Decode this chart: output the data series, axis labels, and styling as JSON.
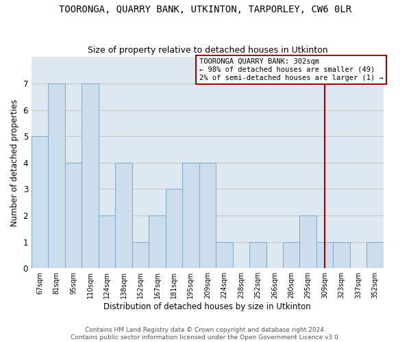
{
  "title": "TOORONGA, QUARRY BANK, UTKINTON, TARPORLEY, CW6 0LR",
  "subtitle": "Size of property relative to detached houses in Utkinton",
  "xlabel": "Distribution of detached houses by size in Utkinton",
  "ylabel": "Number of detached properties",
  "categories": [
    "67sqm",
    "81sqm",
    "95sqm",
    "110sqm",
    "124sqm",
    "138sqm",
    "152sqm",
    "167sqm",
    "181sqm",
    "195sqm",
    "209sqm",
    "224sqm",
    "238sqm",
    "252sqm",
    "266sqm",
    "280sqm",
    "295sqm",
    "309sqm",
    "323sqm",
    "337sqm",
    "352sqm"
  ],
  "values": [
    5,
    7,
    4,
    7,
    2,
    4,
    1,
    2,
    3,
    4,
    4,
    1,
    0,
    1,
    0,
    1,
    2,
    1,
    1,
    0,
    1
  ],
  "bar_color": "#ccdded",
  "bar_edge_color": "#7aaac8",
  "bar_linewidth": 0.7,
  "vline_x_index": 17.0,
  "vline_color": "#aa0000",
  "annotation_text": "TOORONGA QUARRY BANK: 302sqm\n← 98% of detached houses are smaller (49)\n2% of semi-detached houses are larger (1) →",
  "annotation_box_color": "#ffffff",
  "annotation_box_edge_color": "#aa0000",
  "annotation_fontsize": 7.5,
  "ylim": [
    0,
    8
  ],
  "yticks": [
    0,
    1,
    2,
    3,
    4,
    5,
    6,
    7
  ],
  "title_fontsize": 10,
  "subtitle_fontsize": 9,
  "xlabel_fontsize": 8.5,
  "ylabel_fontsize": 8.5,
  "footer_line1": "Contains HM Land Registry data © Crown copyright and database right 2024.",
  "footer_line2": "Contains public sector information licensed under the Open Government Licence v3.0.",
  "footer_fontsize": 6.5,
  "grid_color": "#c8c8c8",
  "bg_color": "#dde8f0"
}
